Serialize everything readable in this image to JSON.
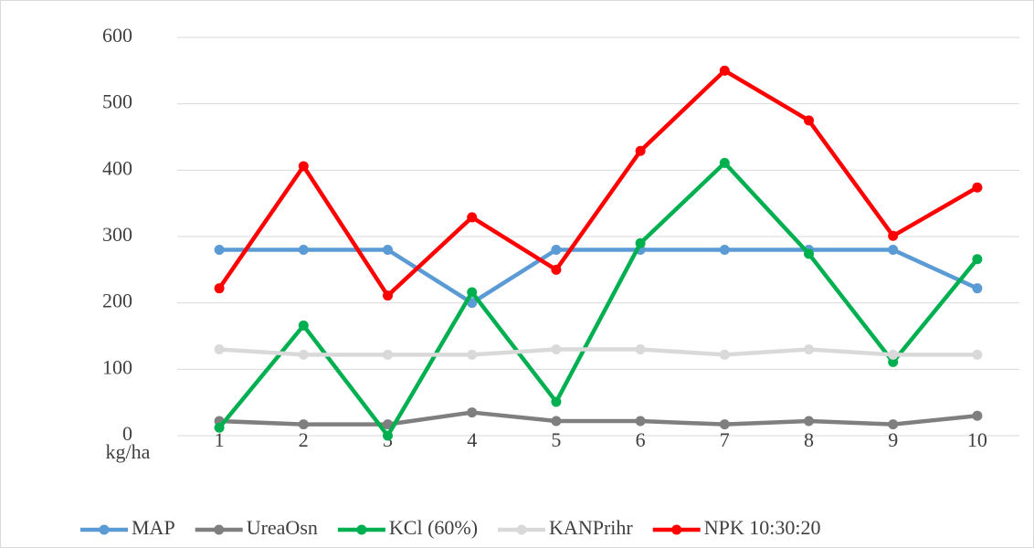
{
  "chart_data": {
    "type": "line",
    "y_label": "kg/ha",
    "categories": [
      "1",
      "2",
      "3",
      "4",
      "5",
      "6",
      "7",
      "8",
      "9",
      "10"
    ],
    "series": [
      {
        "name": "MAP",
        "color": "#5b9bd5",
        "values": [
          280,
          280,
          280,
          200,
          280,
          280,
          280,
          280,
          280,
          222
        ]
      },
      {
        "name": "UreaOsn",
        "color": "#7f7f7f",
        "values": [
          22,
          17,
          17,
          35,
          22,
          22,
          17,
          22,
          17,
          30
        ]
      },
      {
        "name": "KCl (60%)",
        "color": "#00b050",
        "values": [
          12,
          166,
          0,
          216,
          51,
          290,
          411,
          274,
          111,
          266
        ]
      },
      {
        "name": "KANPrihr",
        "color": "#d9d9d9",
        "values": [
          130,
          122,
          122,
          122,
          130,
          130,
          122,
          130,
          122,
          122
        ]
      },
      {
        "name": "NPK 10:30:20",
        "color": "#ff0000",
        "values": [
          222,
          406,
          211,
          329,
          250,
          429,
          550,
          475,
          301,
          374
        ]
      }
    ],
    "ylim": [
      0,
      600
    ],
    "yticks": [
      0,
      100,
      200,
      300,
      400,
      500,
      600
    ],
    "grid": true,
    "legend": "bottom"
  }
}
